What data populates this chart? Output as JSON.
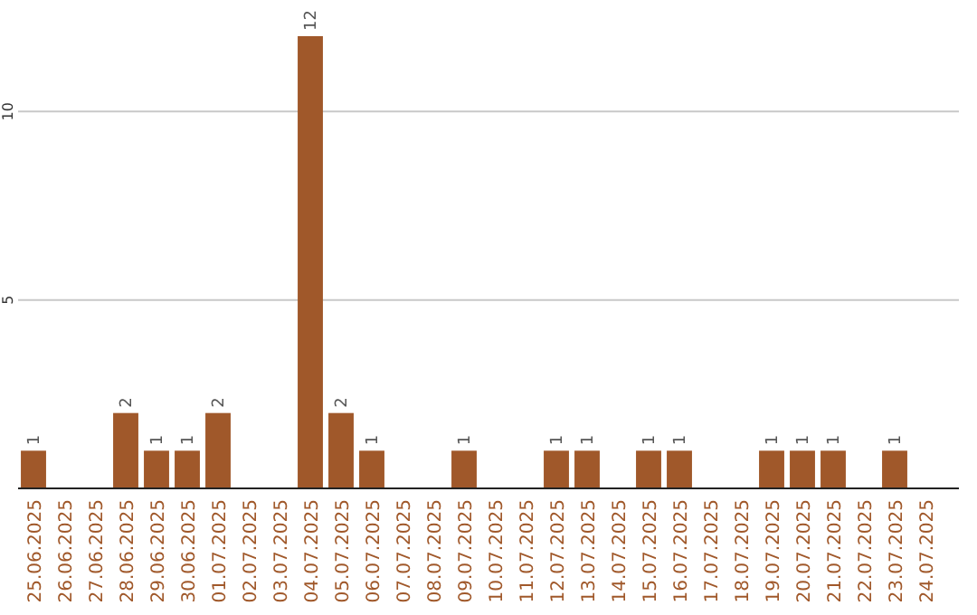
{
  "chart_data": {
    "type": "bar",
    "categories": [
      "25.06.2025",
      "26.06.2025",
      "27.06.2025",
      "28.06.2025",
      "29.06.2025",
      "30.06.2025",
      "01.07.2025",
      "02.07.2025",
      "03.07.2025",
      "04.07.2025",
      "05.07.2025",
      "06.07.2025",
      "07.07.2025",
      "08.07.2025",
      "09.07.2025",
      "10.07.2025",
      "11.07.2025",
      "12.07.2025",
      "13.07.2025",
      "14.07.2025",
      "15.07.2025",
      "16.07.2025",
      "17.07.2025",
      "18.07.2025",
      "19.07.2025",
      "20.07.2025",
      "21.07.2025",
      "22.07.2025",
      "23.07.2025",
      "24.07.2025"
    ],
    "values": [
      1,
      0,
      0,
      2,
      1,
      1,
      2,
      0,
      0,
      12,
      2,
      1,
      0,
      0,
      1,
      0,
      0,
      1,
      1,
      0,
      1,
      1,
      0,
      0,
      1,
      1,
      1,
      0,
      1,
      0
    ],
    "value_labels": [
      "1",
      null,
      null,
      "2",
      "1",
      "1",
      "2",
      null,
      null,
      "12",
      "2",
      "1",
      null,
      null,
      "1",
      null,
      null,
      "1",
      "1",
      null,
      "1",
      "1",
      null,
      null,
      "1",
      "1",
      "1",
      null,
      "1",
      null
    ],
    "color": "#a0582a",
    "ylim": [
      0,
      12
    ],
    "yticks": [
      {
        "value": 0,
        "label": null
      },
      5,
      10
    ],
    "grid": "y"
  }
}
